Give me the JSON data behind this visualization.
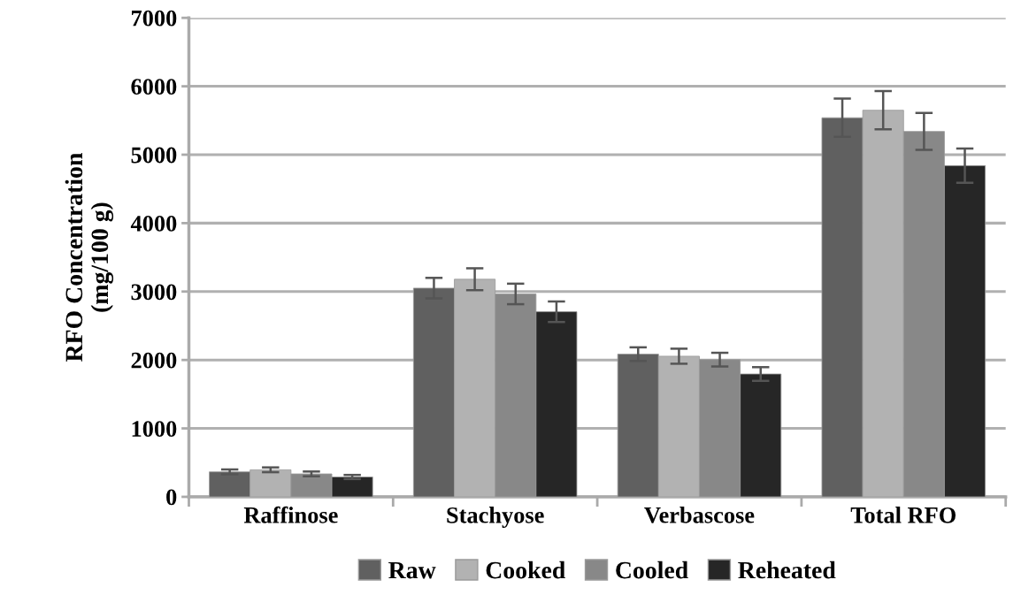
{
  "chart_data": {
    "type": "bar",
    "ylabel": "RFO Concentration\n(mg/100 g)",
    "categories": [
      "Raffinose",
      "Stachyose",
      "Verbascose",
      "Total RFO"
    ],
    "series": [
      {
        "name": "Raw",
        "color": "#606060",
        "values": [
          365,
          3050,
          2085,
          5540
        ],
        "errors": [
          35,
          150,
          100,
          280
        ]
      },
      {
        "name": "Cooked",
        "color": "#b2b2b2",
        "values": [
          395,
          3180,
          2055,
          5650
        ],
        "errors": [
          35,
          160,
          110,
          280
        ]
      },
      {
        "name": "Cooled",
        "color": "#888888",
        "values": [
          335,
          2965,
          2005,
          5340
        ],
        "errors": [
          35,
          150,
          100,
          270
        ]
      },
      {
        "name": "Reheated",
        "color": "#262626",
        "values": [
          290,
          2705,
          1795,
          4840
        ],
        "errors": [
          30,
          150,
          100,
          250
        ]
      }
    ],
    "ylim": [
      0,
      7000
    ],
    "yticks": [
      0,
      1000,
      2000,
      3000,
      4000,
      5000,
      6000,
      7000
    ],
    "grid": "y",
    "legend": "bottom"
  }
}
